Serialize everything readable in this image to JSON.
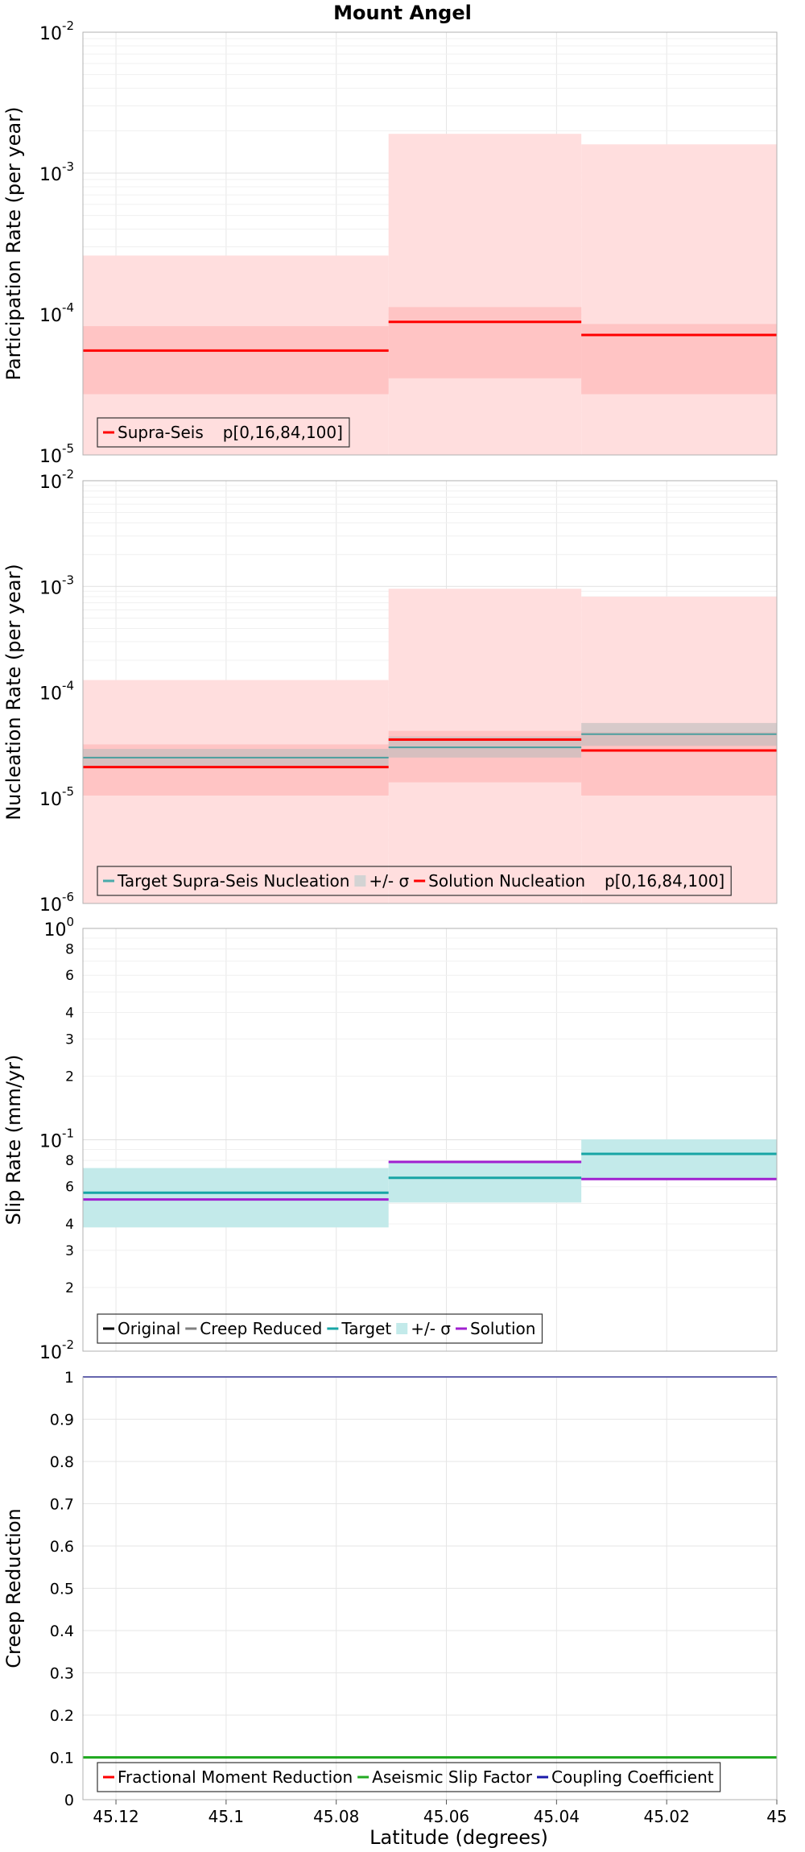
{
  "chart_data": {
    "title": "Mount Angel",
    "type": "line",
    "xlabel": "Latitude (degrees)",
    "xlim": [
      45.126,
      45.0
    ],
    "x_ticks": [
      {
        "value": 45.12,
        "label": "45.12"
      },
      {
        "value": 45.1,
        "label": "45.1"
      },
      {
        "value": 45.08,
        "label": "45.08"
      },
      {
        "value": 45.06,
        "label": "45.06"
      },
      {
        "value": 45.04,
        "label": "45.04"
      },
      {
        "value": 45.02,
        "label": "45.02"
      },
      {
        "value": 45.0,
        "label": "45"
      }
    ],
    "grid": true,
    "panels": [
      {
        "ylabel": "Participation Rate (per year)",
        "yscale": "log",
        "ylim": [
          1e-05,
          0.01
        ],
        "y_major_ticks": [
          {
            "value": 1e-05,
            "base": "10",
            "exp": "-5"
          },
          {
            "value": 0.0001,
            "base": "10",
            "exp": "-4"
          },
          {
            "value": 0.001,
            "base": "10",
            "exp": "-3"
          },
          {
            "value": 0.01,
            "base": "10",
            "exp": "-2"
          }
        ],
        "bands": [
          {
            "color": "#ffdede",
            "segments": [
              [
                45.126,
                45.0705,
                1e-05,
                0.00026
              ],
              [
                45.0705,
                45.0355,
                1e-05,
                0.0019
              ],
              [
                45.0355,
                45.0,
                1e-05,
                0.0016
              ]
            ]
          },
          {
            "color": "#ffc4c4",
            "segments": [
              [
                45.126,
                45.0705,
                2.7e-05,
                8.2e-05
              ],
              [
                45.0705,
                45.0355,
                3.5e-05,
                0.000112
              ],
              [
                45.0355,
                45.0,
                2.7e-05,
                8.5e-05
              ]
            ]
          }
        ],
        "series": [
          {
            "color": "#ff0000",
            "width": 3,
            "segments": [
              [
                45.126,
                45.0705,
                5.5e-05
              ],
              [
                45.0705,
                45.0355,
                8.8e-05
              ],
              [
                45.0355,
                45.0,
                7.1e-05
              ]
            ]
          }
        ],
        "legend": [
          {
            "label": "Supra-Seis",
            "color": "#ff0000",
            "kind": "line"
          },
          {
            "label": "p[0,16,84,100]",
            "color": "#ffdede",
            "kind": "patch"
          }
        ]
      },
      {
        "ylabel": "Nucleation Rate (per year)",
        "yscale": "log",
        "ylim": [
          1e-06,
          0.01
        ],
        "y_major_ticks": [
          {
            "value": 1e-06,
            "base": "10",
            "exp": "-6"
          },
          {
            "value": 1e-05,
            "base": "10",
            "exp": "-5"
          },
          {
            "value": 0.0001,
            "base": "10",
            "exp": "-4"
          },
          {
            "value": 0.001,
            "base": "10",
            "exp": "-3"
          },
          {
            "value": 0.01,
            "base": "10",
            "exp": "-2"
          }
        ],
        "bands": [
          {
            "color": "#ffdede",
            "segments": [
              [
                45.126,
                45.0705,
                1e-06,
                0.00013
              ],
              [
                45.0705,
                45.0355,
                1e-06,
                0.00095
              ],
              [
                45.0355,
                45.0,
                1e-06,
                0.0008
              ]
            ]
          },
          {
            "color": "#ffc4c4",
            "segments": [
              [
                45.126,
                45.0705,
                1.05e-05,
                3.2e-05
              ],
              [
                45.0705,
                45.0355,
                1.4e-05,
                4.3e-05
              ],
              [
                45.0355,
                45.0,
                1.05e-05,
                4.2e-05
              ]
            ]
          },
          {
            "color": "#bdbdbd",
            "opacity": 0.6,
            "segments": [
              [
                45.126,
                45.0705,
                1.9e-05,
                2.9e-05
              ],
              [
                45.0705,
                45.0355,
                2.4e-05,
                3.8e-05
              ],
              [
                45.0355,
                45.0,
                3.1e-05,
                5.1e-05
              ]
            ]
          }
        ],
        "series": [
          {
            "color": "#4a9e9e",
            "width": 2,
            "segments": [
              [
                45.126,
                45.0705,
                2.4e-05
              ],
              [
                45.0705,
                45.0355,
                3e-05
              ],
              [
                45.0355,
                45.0,
                4e-05
              ]
            ]
          },
          {
            "color": "#ff0000",
            "width": 3,
            "segments": [
              [
                45.126,
                45.0705,
                1.95e-05
              ],
              [
                45.0705,
                45.0355,
                3.55e-05
              ],
              [
                45.0355,
                45.0,
                2.8e-05
              ]
            ]
          }
        ],
        "legend": [
          {
            "label": "Target Supra-Seis Nucleation",
            "color": "#4aaaaa",
            "kind": "line"
          },
          {
            "label": "+/- σ",
            "color": "#d3d3d3",
            "kind": "patch"
          },
          {
            "label": "Solution Nucleation",
            "color": "#ff0000",
            "kind": "line"
          },
          {
            "label": "p[0,16,84,100]",
            "color": "#ffdede",
            "kind": "patch"
          }
        ]
      },
      {
        "ylabel": "Slip Rate (mm/yr)",
        "yscale": "log",
        "ylim": [
          0.01,
          1
        ],
        "y_major_ticks": [
          {
            "value": 0.01,
            "base": "10",
            "exp": "-2"
          },
          {
            "value": 0.1,
            "base": "10",
            "exp": "-1"
          },
          {
            "value": 1,
            "base": "10",
            "exp": "0"
          }
        ],
        "y_minor_ticks": [
          {
            "value": 0.02,
            "label": "2"
          },
          {
            "value": 0.03,
            "label": "3"
          },
          {
            "value": 0.04,
            "label": "4"
          },
          {
            "value": 0.06,
            "label": "6"
          },
          {
            "value": 0.08,
            "label": "8"
          },
          {
            "value": 0.2,
            "label": "2"
          },
          {
            "value": 0.3,
            "label": "3"
          },
          {
            "value": 0.4,
            "label": "4"
          },
          {
            "value": 0.6,
            "label": "6"
          },
          {
            "value": 0.8,
            "label": "8"
          }
        ],
        "bands": [
          {
            "color": "#c3eaea",
            "segments": [
              [
                45.126,
                45.0705,
                0.0385,
                0.0735
              ],
              [
                45.0705,
                45.0355,
                0.0505,
                0.0785
              ],
              [
                45.0355,
                45.0,
                0.0655,
                0.1005
              ]
            ]
          }
        ],
        "series": [
          {
            "color": "#17a5a5",
            "width": 3,
            "segments": [
              [
                45.126,
                45.0705,
                0.0562
              ],
              [
                45.0705,
                45.0355,
                0.0661
              ],
              [
                45.0355,
                45.0,
                0.0858
              ]
            ]
          },
          {
            "color": "#a020d0",
            "width": 3,
            "segments": [
              [
                45.126,
                45.0705,
                0.0522
              ],
              [
                45.0705,
                45.0355,
                0.0786
              ],
              [
                45.0355,
                45.0,
                0.0652
              ]
            ]
          }
        ],
        "legend": [
          {
            "label": "Original",
            "color": "#000000",
            "kind": "line"
          },
          {
            "label": "Creep Reduced",
            "color": "#808080",
            "kind": "line"
          },
          {
            "label": "Target",
            "color": "#17a5a5",
            "kind": "line"
          },
          {
            "label": "+/- σ",
            "color": "#c3eaea",
            "kind": "patch"
          },
          {
            "label": "Solution",
            "color": "#a020d0",
            "kind": "line"
          }
        ]
      },
      {
        "ylabel": "Creep Reduction",
        "yscale": "linear",
        "ylim": [
          0,
          1
        ],
        "y_linear_ticks": [
          {
            "value": 0,
            "label": "0"
          },
          {
            "value": 0.1,
            "label": "0.1"
          },
          {
            "value": 0.2,
            "label": "0.2"
          },
          {
            "value": 0.3,
            "label": "0.3"
          },
          {
            "value": 0.4,
            "label": "0.4"
          },
          {
            "value": 0.5,
            "label": "0.5"
          },
          {
            "value": 0.6,
            "label": "0.6"
          },
          {
            "value": 0.7,
            "label": "0.7"
          },
          {
            "value": 0.8,
            "label": "0.8"
          },
          {
            "value": 0.9,
            "label": "0.9"
          },
          {
            "value": 1,
            "label": "1"
          }
        ],
        "bands": [],
        "series": [
          {
            "color": "#1a1aaa",
            "width": 2,
            "segments": [
              [
                45.126,
                45.0,
                1.0
              ]
            ]
          },
          {
            "color": "#22aa22",
            "width": 3,
            "segments": [
              [
                45.126,
                45.0,
                0.1
              ]
            ]
          }
        ],
        "legend": [
          {
            "label": "Fractional Moment Reduction",
            "color": "#ff0000",
            "kind": "line"
          },
          {
            "label": "Aseismic Slip Factor",
            "color": "#22aa22",
            "kind": "line"
          },
          {
            "label": "Coupling Coefficient",
            "color": "#1a1aaa",
            "kind": "line"
          }
        ]
      }
    ]
  }
}
